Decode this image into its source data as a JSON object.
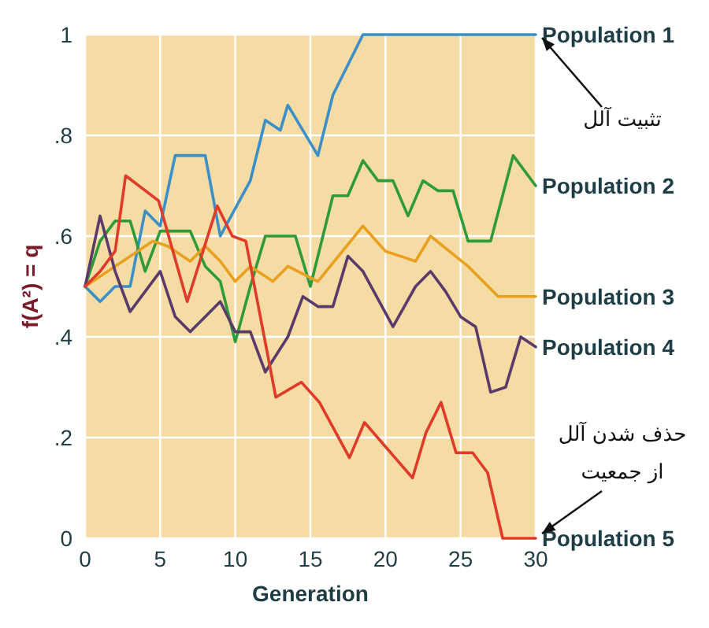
{
  "chart_data": {
    "type": "line",
    "xlabel": "Generation",
    "ylabel": "f(A²) = q",
    "xlim": [
      0,
      30
    ],
    "ylim": [
      0,
      1
    ],
    "xticks": [
      0,
      5,
      10,
      15,
      20,
      25,
      30
    ],
    "yticks": [
      0,
      {
        "value": 0.2,
        "label": ".2"
      },
      {
        "value": 0.4,
        "label": ".4"
      },
      {
        "value": 0.6,
        "label": ".6"
      },
      {
        "value": 0.8,
        "label": ".8"
      },
      1
    ],
    "grid": true,
    "line_style": "solid",
    "series": [
      {
        "name": "Population 1",
        "color": "#3a8fc8",
        "x": [
          0,
          1,
          2,
          3,
          4,
          5,
          6,
          8,
          9,
          11,
          12,
          13,
          13.5,
          15.5,
          16.5,
          18.5,
          30
        ],
        "values": [
          0.5,
          0.47,
          0.5,
          0.5,
          0.65,
          0.62,
          0.76,
          0.76,
          0.6,
          0.71,
          0.83,
          0.81,
          0.86,
          0.76,
          0.88,
          1,
          1
        ]
      },
      {
        "name": "Population 2",
        "color": "#2f9a3a",
        "x": [
          0,
          1,
          2,
          3,
          4,
          5,
          7,
          8,
          9,
          10,
          11,
          12,
          14,
          15,
          16.5,
          17.5,
          18.5,
          19.5,
          20.5,
          21.5,
          22.5,
          23.5,
          24.5,
          25.5,
          27,
          28.5,
          30
        ],
        "values": [
          0.5,
          0.59,
          0.63,
          0.63,
          0.53,
          0.61,
          0.61,
          0.54,
          0.51,
          0.39,
          0.5,
          0.6,
          0.6,
          0.5,
          0.68,
          0.68,
          0.75,
          0.71,
          0.71,
          0.64,
          0.71,
          0.69,
          0.69,
          0.59,
          0.59,
          0.76,
          0.7
        ]
      },
      {
        "name": "Population 3",
        "color": "#e8a020",
        "x": [
          0,
          4.5,
          5.5,
          7,
          8,
          9,
          10,
          11,
          12.5,
          13.5,
          15.5,
          18.5,
          20,
          22,
          23,
          25.5,
          27.5,
          30
        ],
        "values": [
          0.5,
          0.59,
          0.58,
          0.55,
          0.58,
          0.55,
          0.51,
          0.54,
          0.51,
          0.54,
          0.51,
          0.62,
          0.57,
          0.55,
          0.6,
          0.54,
          0.48,
          0.48
        ]
      },
      {
        "name": "Population 4",
        "color": "#5a3a6a",
        "x": [
          0,
          1,
          2,
          3,
          4,
          5,
          6,
          7,
          9,
          10,
          11,
          12,
          13.5,
          14.5,
          15.5,
          16.5,
          17.5,
          18.5,
          20.5,
          22,
          23,
          24,
          25,
          26,
          27,
          28,
          29,
          30
        ],
        "values": [
          0.5,
          0.64,
          0.53,
          0.45,
          0.49,
          0.53,
          0.44,
          0.41,
          0.47,
          0.41,
          0.41,
          0.33,
          0.4,
          0.48,
          0.46,
          0.46,
          0.56,
          0.53,
          0.42,
          0.5,
          0.53,
          0.49,
          0.44,
          0.42,
          0.29,
          0.3,
          0.4,
          0.38
        ]
      },
      {
        "name": "Population 5",
        "color": "#e03a2a",
        "x": [
          0,
          1,
          2,
          2.7,
          4.9,
          6.8,
          8.8,
          9.8,
          10.7,
          12.7,
          14.4,
          15.6,
          17.6,
          18.6,
          21.8,
          22.7,
          23.7,
          24.7,
          25.8,
          26.8,
          27.8,
          30
        ],
        "values": [
          0.5,
          0.53,
          0.57,
          0.72,
          0.67,
          0.47,
          0.66,
          0.6,
          0.59,
          0.28,
          0.31,
          0.27,
          0.16,
          0.23,
          0.12,
          0.21,
          0.27,
          0.17,
          0.17,
          0.13,
          0,
          0
        ]
      }
    ],
    "annotations": [
      {
        "text": "تثبیت آلل",
        "x": 30,
        "y": 1
      },
      {
        "text": "حذف شدن آلل\nاز جمعیت",
        "x": 30,
        "y": 0
      }
    ]
  }
}
